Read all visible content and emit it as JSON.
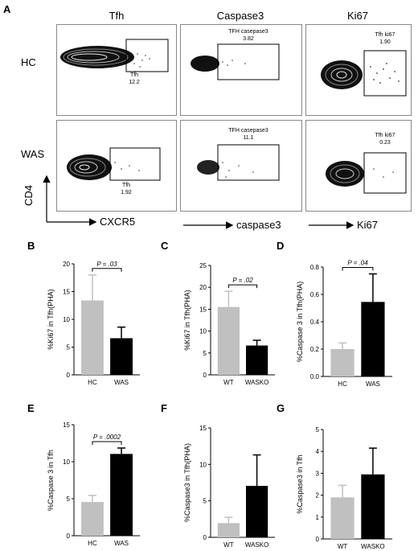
{
  "panel_a": {
    "letter": "A",
    "columns": [
      "Tfh",
      "Caspase3",
      "Ki67"
    ],
    "rows": [
      "HC",
      "WAS"
    ],
    "gates": {
      "hc_tfh": {
        "name": "Tfh",
        "value": "12.2"
      },
      "hc_casp": {
        "name": "TFH casepase3",
        "value": "3.82"
      },
      "hc_ki67": {
        "name": "Tfh ki67",
        "value": "1.90"
      },
      "was_tfh": {
        "name": "Tfh",
        "value": "1.92"
      },
      "was_casp": {
        "name": "TFH casepase3",
        "value": "11.1"
      },
      "was_ki67": {
        "name": "Tfh ki67",
        "value": "0.23"
      }
    },
    "y_axis": "CD4",
    "x_axes": [
      "CXCR5",
      "caspase3",
      "Ki67"
    ]
  },
  "colors": {
    "light_bar": "#c0c0c0",
    "dark_bar": "#000000"
  },
  "chart_data": [
    {
      "letter": "B",
      "type": "bar",
      "ylabel": "%Ki67 in Tfh(PHA)",
      "categories": [
        "HC",
        "WAS"
      ],
      "values": [
        13.4,
        6.6
      ],
      "errors": [
        4.6,
        2.0
      ],
      "ylim": [
        0,
        20
      ],
      "yticks": [
        "0",
        "5",
        "10",
        "15",
        "20"
      ],
      "pvalue": "P = .03"
    },
    {
      "letter": "C",
      "type": "bar",
      "ylabel": "%Ki67 in Tfh(PHA)",
      "categories": [
        "WT",
        "WASKO"
      ],
      "values": [
        15.5,
        6.7
      ],
      "errors": [
        3.6,
        1.2
      ],
      "ylim": [
        0,
        25
      ],
      "yticks": [
        "0",
        "5",
        "10",
        "15",
        "20",
        "25"
      ],
      "pvalue": "P = .02"
    },
    {
      "letter": "D",
      "type": "bar",
      "ylabel": "%Caspase 3 in Tfh(PHA)",
      "categories": [
        "HC",
        "WAS"
      ],
      "values": [
        0.2,
        0.545
      ],
      "errors": [
        0.045,
        0.205
      ],
      "ylim": [
        0,
        0.8
      ],
      "yticks": [
        "0.0",
        "0.2",
        "0.4",
        "0.6",
        "0.8"
      ],
      "pvalue": "P = .04"
    },
    {
      "letter": "E",
      "type": "bar",
      "ylabel": "%Caspase 3 in Tfh",
      "categories": [
        "HC",
        "WAS"
      ],
      "values": [
        4.55,
        11.05
      ],
      "errors": [
        0.9,
        0.8
      ],
      "ylim": [
        0,
        15
      ],
      "yticks": [
        "0",
        "5",
        "10",
        "15"
      ],
      "pvalue": "P = .0002"
    },
    {
      "letter": "F",
      "type": "bar",
      "ylabel": "%Caspase3 in Tfh(PHA)",
      "categories": [
        "WT",
        "WASKO"
      ],
      "values": [
        1.95,
        7.05
      ],
      "errors": [
        0.8,
        4.25
      ],
      "ylim": [
        0,
        15
      ],
      "yticks": [
        "0",
        "5",
        "10",
        "15"
      ],
      "pvalue": ""
    },
    {
      "letter": "G",
      "type": "bar",
      "ylabel": "%Caspase3 in Tfh",
      "categories": [
        "WT",
        "WASKO"
      ],
      "values": [
        1.9,
        2.95
      ],
      "errors": [
        0.55,
        1.2
      ],
      "ylim": [
        0,
        5
      ],
      "yticks": [
        "0",
        "1",
        "2",
        "3",
        "4",
        "5"
      ],
      "pvalue": ""
    }
  ]
}
